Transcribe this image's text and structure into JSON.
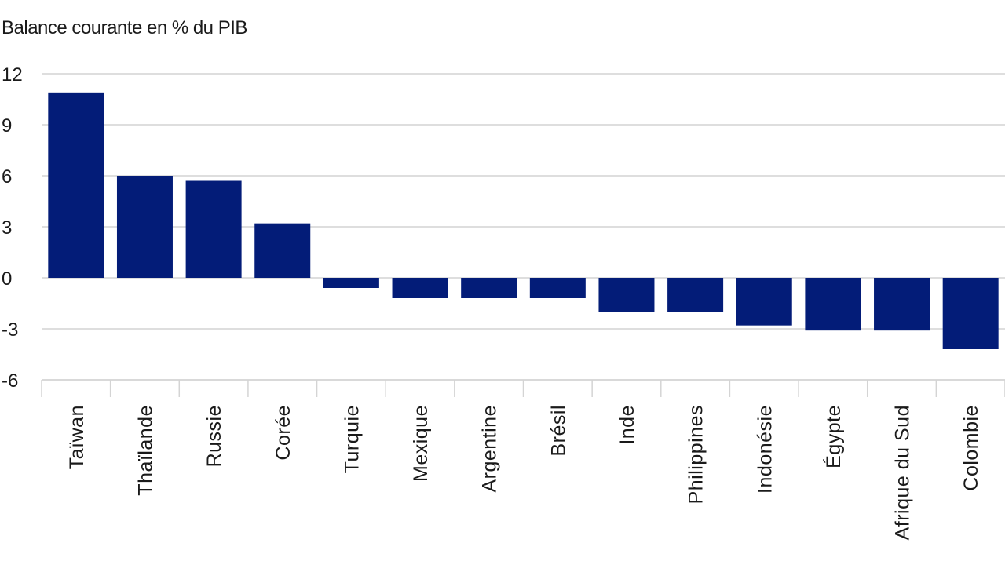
{
  "chart_data": {
    "type": "bar",
    "title": "Balance courante en % du PIB",
    "categories": [
      "Taïwan",
      "Thaïlande",
      "Russie",
      "Corée",
      "Turquie",
      "Mexique",
      "Argentine",
      "Brésil",
      "Inde",
      "Philippines",
      "Indonésie",
      "Égypte",
      "Afrique du Sud",
      "Colombie"
    ],
    "values": [
      10.9,
      6.0,
      5.7,
      3.2,
      -0.6,
      -1.2,
      -1.2,
      -1.2,
      -2.0,
      -2.0,
      -2.8,
      -3.1,
      -3.1,
      -4.2
    ],
    "ylim": [
      -6,
      12
    ],
    "yticks": [
      12,
      9,
      6,
      3,
      0,
      -3,
      -6
    ],
    "grid": true,
    "bar_color": "#031c78",
    "grid_color": "#d4d4d4"
  }
}
